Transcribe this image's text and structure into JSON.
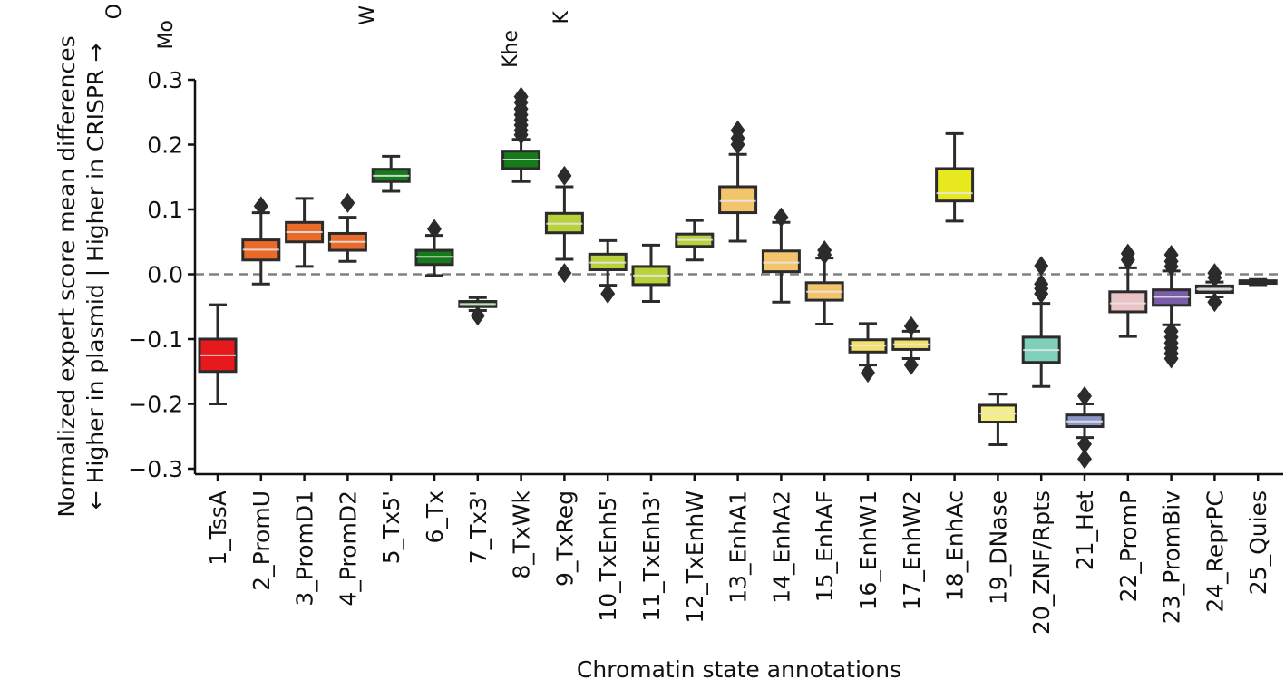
{
  "chart_data": {
    "type": "box",
    "title": "",
    "xlabel": "Chromatin state annotations",
    "ylabel_line1": "Normalized expert score mean differences",
    "ylabel_line2": "← Higher in plasmid | Higher in CRISPR →",
    "ylim": [
      -0.31,
      0.31
    ],
    "yticks": [
      0.3,
      0.2,
      0.1,
      0.0,
      -0.1,
      -0.2,
      -0.3
    ],
    "ytick_labels": [
      "0.3",
      "0.2",
      "0.1",
      "0.0",
      "−0.1",
      "−0.2",
      "−0.3"
    ],
    "reference_line": 0.0,
    "top_labels": [
      "O",
      "Mo",
      "W",
      "Khe",
      "K"
    ],
    "categories": [
      {
        "label": "1_TssA",
        "color": "#e8191c",
        "median": -0.125,
        "q1": -0.15,
        "q3": -0.1,
        "wlo": -0.2,
        "whi": -0.047,
        "outliers": []
      },
      {
        "label": "2_PromU",
        "color": "#ea6a2a",
        "median": 0.038,
        "q1": 0.022,
        "q3": 0.053,
        "wlo": -0.015,
        "whi": 0.095,
        "outliers": [
          0.105
        ]
      },
      {
        "label": "3_PromD1",
        "color": "#ea6a2a",
        "median": 0.065,
        "q1": 0.05,
        "q3": 0.08,
        "wlo": 0.012,
        "whi": 0.117,
        "outliers": []
      },
      {
        "label": "4_PromD2",
        "color": "#ea6a2a",
        "median": 0.05,
        "q1": 0.037,
        "q3": 0.063,
        "wlo": 0.02,
        "whi": 0.088,
        "outliers": [
          0.11
        ]
      },
      {
        "label": "5_Tx5'",
        "color": "#157a1a",
        "median": 0.152,
        "q1": 0.143,
        "q3": 0.162,
        "wlo": 0.128,
        "whi": 0.182,
        "outliers": []
      },
      {
        "label": "6_Tx",
        "color": "#157a1a",
        "median": 0.027,
        "q1": 0.015,
        "q3": 0.037,
        "wlo": -0.002,
        "whi": 0.06,
        "outliers": [
          0.07
        ]
      },
      {
        "label": "7_Tx3'",
        "color": "#157a1a",
        "median": -0.046,
        "q1": -0.05,
        "q3": -0.042,
        "wlo": -0.056,
        "whi": -0.036,
        "outliers": [
          -0.064
        ]
      },
      {
        "label": "8_TxWk",
        "color": "#157a1a",
        "median": 0.177,
        "q1": 0.163,
        "q3": 0.19,
        "wlo": 0.143,
        "whi": 0.208,
        "outliers": [
          0.215,
          0.222,
          0.23,
          0.238,
          0.246,
          0.255,
          0.265,
          0.274
        ]
      },
      {
        "label": "9_TxReg",
        "color": "#b8d23c",
        "median": 0.078,
        "q1": 0.064,
        "q3": 0.094,
        "wlo": 0.023,
        "whi": 0.135,
        "outliers": [
          0.152,
          0.002
        ]
      },
      {
        "label": "10_TxEnh5'",
        "color": "#b8d23c",
        "median": 0.018,
        "q1": 0.007,
        "q3": 0.031,
        "wlo": -0.017,
        "whi": 0.052,
        "outliers": [
          -0.03
        ]
      },
      {
        "label": "11_TxEnh3'",
        "color": "#b8d23c",
        "median": -0.002,
        "q1": -0.016,
        "q3": 0.012,
        "wlo": -0.042,
        "whi": 0.045,
        "outliers": []
      },
      {
        "label": "12_TxEnhW",
        "color": "#b8d23c",
        "median": 0.053,
        "q1": 0.043,
        "q3": 0.062,
        "wlo": 0.022,
        "whi": 0.083,
        "outliers": []
      },
      {
        "label": "13_EnhA1",
        "color": "#f3c46b",
        "median": 0.113,
        "q1": 0.095,
        "q3": 0.135,
        "wlo": 0.051,
        "whi": 0.185,
        "outliers": [
          0.2,
          0.21,
          0.222
        ]
      },
      {
        "label": "14_EnhA2",
        "color": "#f3c46b",
        "median": 0.018,
        "q1": 0.004,
        "q3": 0.036,
        "wlo": -0.043,
        "whi": 0.08,
        "outliers": [
          0.088
        ]
      },
      {
        "label": "15_EnhAF",
        "color": "#f3c46b",
        "median": -0.027,
        "q1": -0.04,
        "q3": -0.013,
        "wlo": -0.077,
        "whi": 0.025,
        "outliers": [
          0.03,
          0.037
        ]
      },
      {
        "label": "16_EnhW1",
        "color": "#f3e06a",
        "median": -0.11,
        "q1": -0.12,
        "q3": -0.101,
        "wlo": -0.14,
        "whi": -0.076,
        "outliers": [
          -0.152
        ]
      },
      {
        "label": "17_EnhW2",
        "color": "#f3e06a",
        "median": -0.108,
        "q1": -0.116,
        "q3": -0.1,
        "wlo": -0.13,
        "whi": -0.088,
        "outliers": [
          -0.08,
          -0.14
        ]
      },
      {
        "label": "18_EnhAc",
        "color": "#e8e81e",
        "median": 0.125,
        "q1": 0.113,
        "q3": 0.163,
        "wlo": 0.082,
        "whi": 0.217,
        "outliers": []
      },
      {
        "label": "19_DNase",
        "color": "#f3ee86",
        "median": -0.215,
        "q1": -0.228,
        "q3": -0.202,
        "wlo": -0.263,
        "whi": -0.185,
        "outliers": []
      },
      {
        "label": "20_ZNF/Rpts",
        "color": "#7fd0b8",
        "median": -0.117,
        "q1": -0.136,
        "q3": -0.097,
        "wlo": -0.173,
        "whi": -0.045,
        "outliers": [
          -0.03,
          -0.022,
          -0.015,
          0.013
        ]
      },
      {
        "label": "21_Het",
        "color": "#8a96c8",
        "median": -0.227,
        "q1": -0.235,
        "q3": -0.217,
        "wlo": -0.252,
        "whi": -0.2,
        "outliers": [
          -0.188,
          -0.262,
          -0.285
        ]
      },
      {
        "label": "22_PromP",
        "color": "#e9c3c5",
        "median": -0.045,
        "q1": -0.058,
        "q3": -0.027,
        "wlo": -0.096,
        "whi": 0.01,
        "outliers": [
          0.022,
          0.032
        ]
      },
      {
        "label": "23_PromBiv",
        "color": "#7b5cab",
        "median": -0.035,
        "q1": -0.048,
        "q3": -0.024,
        "wlo": -0.078,
        "whi": 0.005,
        "outliers": [
          0.012,
          0.02,
          0.03,
          -0.088,
          -0.097,
          -0.106,
          -0.114,
          -0.122,
          -0.13
        ]
      },
      {
        "label": "24_ReprPC",
        "color": "#8a8a8a",
        "median": -0.023,
        "q1": -0.028,
        "q3": -0.018,
        "wlo": -0.035,
        "whi": -0.012,
        "outliers": [
          -0.005,
          -0.043,
          0.002
        ]
      },
      {
        "label": "25_Quies",
        "color": "#ffffff",
        "median": -0.012,
        "q1": -0.014,
        "q3": -0.01,
        "wlo": -0.016,
        "whi": -0.008,
        "outliers": []
      }
    ]
  }
}
